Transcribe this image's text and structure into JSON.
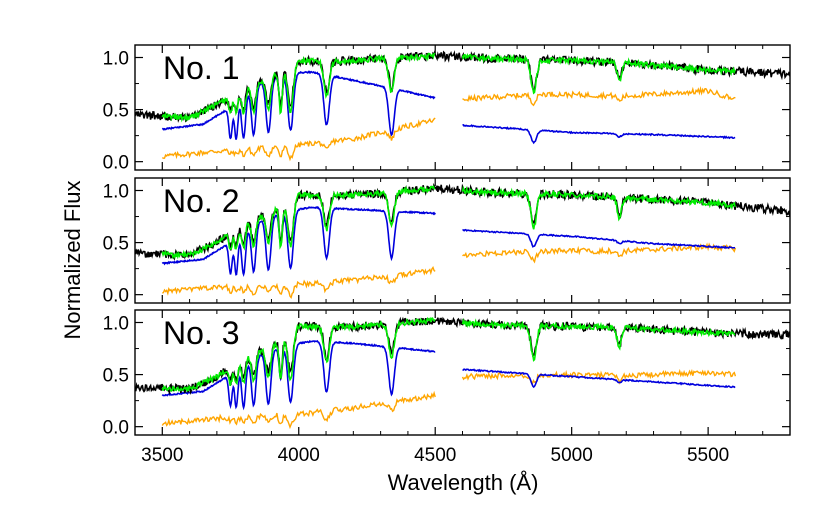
{
  "chart_data": {
    "type": "line",
    "xlabel": "Wavelength (Å)",
    "ylabel": "Normalized Flux",
    "xlim": [
      3400,
      5800
    ],
    "ylim": [
      -0.08,
      1.12
    ],
    "x_ticks": [
      3500,
      4000,
      4500,
      5000,
      5500
    ],
    "y_ticks": [
      0.0,
      0.5,
      1.0
    ],
    "y_tick_labels": [
      "0.0",
      "0.5",
      "1.0"
    ],
    "colors": {
      "observed": "#000000",
      "fit": "#00ee00",
      "young": "#0000dd",
      "old": "#ffa500"
    },
    "panels": [
      {
        "label": "No. 1",
        "observed_continuum": [
          [
            3400,
            0.45
          ],
          [
            3600,
            0.42
          ],
          [
            3700,
            0.55
          ],
          [
            3800,
            0.7
          ],
          [
            3900,
            0.82
          ],
          [
            4000,
            0.97
          ],
          [
            4100,
            0.96
          ],
          [
            4200,
            0.97
          ],
          [
            4300,
            0.99
          ],
          [
            4400,
            1.0
          ],
          [
            4500,
            1.02
          ],
          [
            4700,
            0.99
          ],
          [
            5000,
            0.97
          ],
          [
            5200,
            0.95
          ],
          [
            5500,
            0.88
          ],
          [
            5800,
            0.84
          ]
        ],
        "blue_continuum": [
          [
            3500,
            0.31
          ],
          [
            3650,
            0.36
          ],
          [
            3750,
            0.52
          ],
          [
            3850,
            0.74
          ],
          [
            3950,
            0.85
          ],
          [
            4050,
            0.86
          ],
          [
            4200,
            0.78
          ],
          [
            4350,
            0.7
          ],
          [
            4500,
            0.61
          ],
          [
            4600,
            0.35
          ],
          [
            5000,
            0.28
          ],
          [
            5300,
            0.26
          ],
          [
            5600,
            0.23
          ]
        ],
        "orange_continuum": [
          [
            3500,
            0.05
          ],
          [
            3700,
            0.1
          ],
          [
            3900,
            0.14
          ],
          [
            4000,
            0.16
          ],
          [
            4200,
            0.22
          ],
          [
            4400,
            0.34
          ],
          [
            4500,
            0.4
          ],
          [
            4600,
            0.6
          ],
          [
            4900,
            0.65
          ],
          [
            5200,
            0.63
          ],
          [
            5500,
            0.68
          ],
          [
            5600,
            0.6
          ]
        ]
      },
      {
        "label": "No. 2",
        "observed_continuum": [
          [
            3400,
            0.4
          ],
          [
            3600,
            0.38
          ],
          [
            3700,
            0.5
          ],
          [
            3800,
            0.68
          ],
          [
            3900,
            0.8
          ],
          [
            4000,
            0.96
          ],
          [
            4100,
            0.95
          ],
          [
            4200,
            0.96
          ],
          [
            4300,
            0.97
          ],
          [
            4400,
            1.0
          ],
          [
            4500,
            1.02
          ],
          [
            4700,
            0.98
          ],
          [
            5000,
            0.96
          ],
          [
            5200,
            0.93
          ],
          [
            5500,
            0.88
          ],
          [
            5800,
            0.8
          ]
        ],
        "blue_continuum": [
          [
            3500,
            0.3
          ],
          [
            3650,
            0.34
          ],
          [
            3750,
            0.5
          ],
          [
            3850,
            0.7
          ],
          [
            3950,
            0.8
          ],
          [
            4050,
            0.84
          ],
          [
            4200,
            0.82
          ],
          [
            4350,
            0.8
          ],
          [
            4500,
            0.78
          ],
          [
            4600,
            0.62
          ],
          [
            5000,
            0.56
          ],
          [
            5300,
            0.49
          ],
          [
            5600,
            0.45
          ]
        ],
        "orange_continuum": [
          [
            3500,
            0.03
          ],
          [
            3700,
            0.07
          ],
          [
            3900,
            0.09
          ],
          [
            4000,
            0.1
          ],
          [
            4200,
            0.14
          ],
          [
            4400,
            0.2
          ],
          [
            4500,
            0.24
          ],
          [
            4600,
            0.38
          ],
          [
            4900,
            0.42
          ],
          [
            5200,
            0.42
          ],
          [
            5500,
            0.46
          ],
          [
            5600,
            0.44
          ]
        ]
      },
      {
        "label": "No. 3",
        "observed_continuum": [
          [
            3400,
            0.38
          ],
          [
            3600,
            0.36
          ],
          [
            3700,
            0.48
          ],
          [
            3800,
            0.66
          ],
          [
            3900,
            0.78
          ],
          [
            4000,
            0.97
          ],
          [
            4100,
            0.95
          ],
          [
            4200,
            0.96
          ],
          [
            4300,
            0.98
          ],
          [
            4400,
            1.0
          ],
          [
            4500,
            1.02
          ],
          [
            4700,
            0.98
          ],
          [
            5000,
            0.96
          ],
          [
            5200,
            0.95
          ],
          [
            5500,
            0.9
          ],
          [
            5800,
            0.88
          ]
        ],
        "blue_continuum": [
          [
            3500,
            0.3
          ],
          [
            3650,
            0.34
          ],
          [
            3750,
            0.5
          ],
          [
            3850,
            0.68
          ],
          [
            3950,
            0.78
          ],
          [
            4050,
            0.82
          ],
          [
            4200,
            0.8
          ],
          [
            4350,
            0.76
          ],
          [
            4500,
            0.72
          ],
          [
            4600,
            0.55
          ],
          [
            5000,
            0.48
          ],
          [
            5300,
            0.43
          ],
          [
            5600,
            0.38
          ]
        ],
        "orange_continuum": [
          [
            3500,
            0.03
          ],
          [
            3700,
            0.08
          ],
          [
            3900,
            0.11
          ],
          [
            4000,
            0.12
          ],
          [
            4200,
            0.18
          ],
          [
            4400,
            0.26
          ],
          [
            4500,
            0.3
          ],
          [
            4600,
            0.48
          ],
          [
            4900,
            0.5
          ],
          [
            5200,
            0.49
          ],
          [
            5500,
            0.52
          ],
          [
            5600,
            0.5
          ]
        ]
      }
    ],
    "absorption_lines": [
      {
        "wave": 3750,
        "depth_blue": 0.3,
        "depth_obs": 0.1,
        "width": 6
      },
      {
        "wave": 3771,
        "depth_blue": 0.35,
        "depth_obs": 0.12,
        "width": 6
      },
      {
        "wave": 3798,
        "depth_blue": 0.4,
        "depth_obs": 0.14,
        "width": 7
      },
      {
        "wave": 3835,
        "depth_blue": 0.45,
        "depth_obs": 0.16,
        "width": 8
      },
      {
        "wave": 3889,
        "depth_blue": 0.5,
        "depth_obs": 0.18,
        "width": 9
      },
      {
        "wave": 3934,
        "depth_blue": 0.3,
        "depth_obs": 0.25,
        "width": 6
      },
      {
        "wave": 3970,
        "depth_blue": 0.55,
        "depth_obs": 0.28,
        "width": 10
      },
      {
        "wave": 4102,
        "depth_blue": 0.48,
        "depth_obs": 0.2,
        "width": 10
      },
      {
        "wave": 4340,
        "depth_blue": 0.45,
        "depth_obs": 0.2,
        "width": 10
      },
      {
        "wave": 4861,
        "depth_blue": 0.12,
        "depth_obs": 0.2,
        "width": 10
      },
      {
        "wave": 5175,
        "depth_blue": 0.03,
        "depth_obs": 0.12,
        "width": 8
      }
    ]
  }
}
